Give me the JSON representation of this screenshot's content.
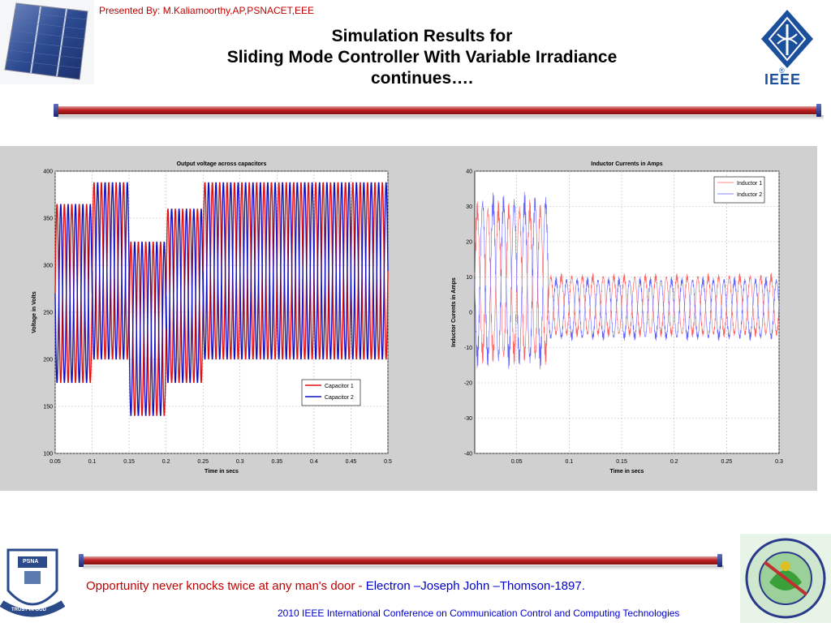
{
  "presenter": "Presented By: M.Kaliamoorthy,AP,PSNACET,EEE",
  "title_lines": [
    "Simulation Results for",
    "Sliding Mode Controller With Variable Irradiance",
    "continues…."
  ],
  "ieee_text": "IEEE",
  "ieee_reg": "®",
  "psna_logo": {
    "top": "PSNA",
    "motto": "TRUST IN GOD"
  },
  "quote": {
    "text": "Opportunity never knocks twice at any man's door",
    "sep": "-",
    "author": "Electron –Joseph John –Thomson-1897."
  },
  "footer": "2010 IEEE International Conference on Communication Control and Computing Technologies",
  "colors": {
    "accent_red": "#c00000",
    "link_blue": "#0000cc",
    "series_red": "#e01010",
    "series_blue": "#1010c0"
  },
  "chart_data": [
    {
      "type": "line",
      "title": "Output voltage across capacitors",
      "xlabel": "Time in secs",
      "ylabel": "Voltage in Volts",
      "xlim": [
        0.05,
        0.5
      ],
      "ylim": [
        100,
        400
      ],
      "xticks": [
        0.05,
        0.1,
        0.15,
        0.2,
        0.25,
        0.3,
        0.35,
        0.4,
        0.45,
        0.5
      ],
      "yticks": [
        100,
        150,
        200,
        250,
        300,
        350,
        400
      ],
      "grid": true,
      "legend_position": "lower-right",
      "period": 0.01,
      "series": [
        {
          "name": "Capacitor 1",
          "color": "#e01010",
          "phase": 0.0,
          "segments": [
            {
              "t0": 0.05,
              "t1": 0.1,
              "min": 175,
              "max": 365
            },
            {
              "t0": 0.1,
              "t1": 0.15,
              "min": 200,
              "max": 388
            },
            {
              "t0": 0.15,
              "t1": 0.2,
              "min": 140,
              "max": 325
            },
            {
              "t0": 0.2,
              "t1": 0.25,
              "min": 175,
              "max": 360
            },
            {
              "t0": 0.25,
              "t1": 0.5,
              "min": 200,
              "max": 388
            }
          ]
        },
        {
          "name": "Capacitor 2",
          "color": "#1010c0",
          "phase": 0.5,
          "segments": [
            {
              "t0": 0.05,
              "t1": 0.1,
              "min": 175,
              "max": 365
            },
            {
              "t0": 0.1,
              "t1": 0.15,
              "min": 200,
              "max": 388
            },
            {
              "t0": 0.15,
              "t1": 0.2,
              "min": 140,
              "max": 325
            },
            {
              "t0": 0.2,
              "t1": 0.25,
              "min": 175,
              "max": 360
            },
            {
              "t0": 0.25,
              "t1": 0.5,
              "min": 200,
              "max": 388
            }
          ]
        }
      ]
    },
    {
      "type": "line",
      "title": "Inductor Currents in Amps",
      "xlabel": "Time in secs",
      "ylabel": "Inductor Curents in Amps",
      "xlim": [
        0.01,
        0.3
      ],
      "ylim": [
        -40,
        40
      ],
      "xticks": [
        0.05,
        0.1,
        0.15,
        0.2,
        0.25,
        0.3
      ],
      "yticks": [
        -40,
        -30,
        -20,
        -10,
        0,
        10,
        20,
        30,
        40
      ],
      "grid": true,
      "legend_position": "top-right",
      "period": 0.01,
      "series": [
        {
          "name": "Inductor 1",
          "color": "#ff6060",
          "phase": 0.0,
          "segments": [
            {
              "t0": 0.01,
              "t1": 0.08,
              "min": -12,
              "max": 29
            },
            {
              "t0": 0.08,
              "t1": 0.3,
              "min": -6,
              "max": 10
            }
          ]
        },
        {
          "name": "Inductor 2",
          "color": "#6060ff",
          "phase": 0.5,
          "segments": [
            {
              "t0": 0.01,
              "t1": 0.08,
              "min": -13,
              "max": 31
            },
            {
              "t0": 0.08,
              "t1": 0.3,
              "min": -7,
              "max": 9
            }
          ]
        }
      ]
    }
  ]
}
